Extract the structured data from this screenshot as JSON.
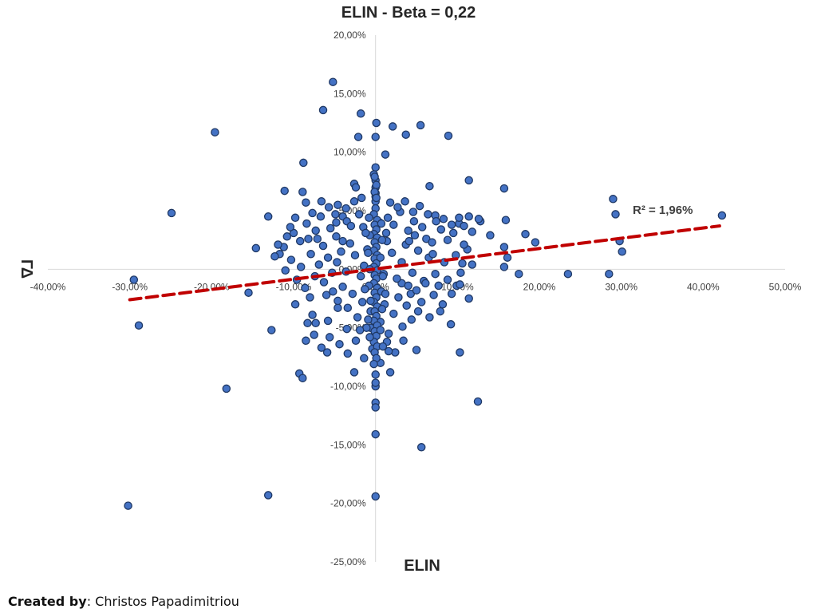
{
  "credit": {
    "label": "Created by",
    "separator": ": ",
    "author": "Christos Papadimitriou"
  },
  "chart_data": {
    "type": "scatter",
    "title": "ELIN - Beta = 0,22",
    "xlabel": "ELIN",
    "ylabel": "ΓΔ",
    "xlim": [
      -0.4,
      0.5
    ],
    "ylim": [
      -0.25,
      0.2
    ],
    "x_ticks": [
      -0.4,
      -0.3,
      -0.2,
      -0.1,
      0.0,
      0.1,
      0.2,
      0.3,
      0.4,
      0.5
    ],
    "x_tick_labels": [
      "-40,00%",
      "-30,00%",
      "-20,00%",
      "-10,00%",
      "0,00%",
      "10,00%",
      "20,00%",
      "30,00%",
      "40,00%",
      "50,00%"
    ],
    "y_ticks": [
      -0.25,
      -0.2,
      -0.15,
      -0.1,
      -0.05,
      0.0,
      0.05,
      0.1,
      0.15,
      0.2
    ],
    "y_tick_labels": [
      "-25,00%",
      "-20,00%",
      "-15,00%",
      "-10,00%",
      "-5,00%",
      "0,00%",
      "5,00%",
      "10,00%",
      "15,00%",
      "20,00%"
    ],
    "grid": false,
    "colors": {
      "marker_fill": "#4472c4",
      "marker_stroke": "#1f3864",
      "trendline": "#c00000",
      "axis": "#d9d9d9"
    },
    "trendline": {
      "type": "linear",
      "x_range": [
        -0.3,
        0.42
      ],
      "y_range": [
        -0.026,
        0.037
      ],
      "label": "R² = 1,96%"
    },
    "series": [
      {
        "points": [
          [
            -0.052,
            0.16
          ],
          [
            -0.064,
            0.136
          ],
          [
            -0.018,
            0.133
          ],
          [
            0.001,
            0.125
          ],
          [
            0.021,
            0.122
          ],
          [
            0.055,
            0.123
          ],
          [
            -0.196,
            0.117
          ],
          [
            -0.021,
            0.113
          ],
          [
            0.0,
            0.113
          ],
          [
            0.037,
            0.115
          ],
          [
            0.089,
            0.114
          ],
          [
            0.012,
            0.098
          ],
          [
            -0.088,
            0.091
          ],
          [
            0.0,
            0.087
          ],
          [
            -0.002,
            0.081
          ],
          [
            0.114,
            0.076
          ],
          [
            0.0,
            0.076
          ],
          [
            -0.026,
            0.073
          ],
          [
            0.066,
            0.071
          ],
          [
            -0.111,
            0.067
          ],
          [
            -0.089,
            0.066
          ],
          [
            0.157,
            0.069
          ],
          [
            -0.024,
            0.07
          ],
          [
            0.0,
            0.065
          ],
          [
            0.29,
            0.06
          ],
          [
            -0.085,
            0.057
          ],
          [
            -0.066,
            0.058
          ],
          [
            0.0,
            0.058
          ],
          [
            -0.249,
            0.048
          ],
          [
            -0.131,
            0.045
          ],
          [
            0.293,
            0.047
          ],
          [
            0.423,
            0.046
          ],
          [
            -0.049,
            0.047
          ],
          [
            -0.04,
            0.045
          ],
          [
            0.073,
            0.046
          ],
          [
            0.114,
            0.045
          ],
          [
            0.159,
            0.042
          ],
          [
            0.102,
            0.039
          ],
          [
            -0.048,
            0.04
          ],
          [
            0.005,
            0.04
          ],
          [
            0.128,
            0.041
          ],
          [
            -0.1,
            0.031
          ],
          [
            0.183,
            0.03
          ],
          [
            0.14,
            0.029
          ],
          [
            -0.146,
            0.018
          ],
          [
            0.157,
            0.019
          ],
          [
            0.195,
            0.023
          ],
          [
            0.298,
            0.024
          ],
          [
            -0.117,
            0.013
          ],
          [
            0.157,
            0.002
          ],
          [
            0.161,
            0.01
          ],
          [
            0.301,
            0.015
          ],
          [
            -0.295,
            -0.009
          ],
          [
            0.175,
            -0.004
          ],
          [
            0.235,
            -0.004
          ],
          [
            0.285,
            -0.004
          ],
          [
            0.032,
            -0.012
          ],
          [
            0.04,
            -0.014
          ],
          [
            -0.155,
            -0.02
          ],
          [
            -0.289,
            -0.048
          ],
          [
            -0.098,
            -0.03
          ],
          [
            -0.046,
            -0.033
          ],
          [
            -0.006,
            -0.05
          ],
          [
            0.079,
            -0.036
          ],
          [
            0.114,
            -0.025
          ],
          [
            0.043,
            -0.021
          ],
          [
            -0.127,
            -0.052
          ],
          [
            -0.083,
            -0.046
          ],
          [
            -0.077,
            -0.039
          ],
          [
            -0.073,
            -0.046
          ],
          [
            0.092,
            -0.047
          ],
          [
            0.103,
            -0.071
          ],
          [
            0.05,
            -0.069
          ],
          [
            -0.059,
            -0.071
          ],
          [
            -0.093,
            -0.089
          ],
          [
            -0.089,
            -0.093
          ],
          [
            -0.026,
            -0.088
          ],
          [
            0.018,
            -0.088
          ],
          [
            -0.182,
            -0.102
          ],
          [
            0.125,
            -0.113
          ],
          [
            -0.131,
            -0.193
          ],
          [
            -0.302,
            -0.202
          ],
          [
            0.0,
            -0.141
          ],
          [
            0.056,
            -0.152
          ],
          [
            0.0,
            -0.194
          ],
          [
            0.0,
            -0.114
          ],
          [
            0.0,
            -0.118
          ],
          [
            0.0,
            -0.1
          ],
          [
            0.0,
            -0.097
          ],
          [
            0.0,
            -0.09
          ],
          [
            -0.073,
            0.033
          ],
          [
            -0.071,
            0.026
          ],
          [
            -0.082,
            0.026
          ],
          [
            -0.092,
            0.024
          ],
          [
            -0.064,
            0.02
          ],
          [
            -0.055,
            0.035
          ],
          [
            -0.035,
            0.041
          ],
          [
            -0.03,
            0.037
          ],
          [
            -0.02,
            0.047
          ],
          [
            -0.015,
            0.036
          ],
          [
            0.015,
            0.044
          ],
          [
            0.022,
            0.038
          ],
          [
            0.03,
            0.049
          ],
          [
            0.04,
            0.033
          ],
          [
            0.048,
            0.029
          ],
          [
            0.057,
            0.036
          ],
          [
            0.062,
            0.026
          ],
          [
            0.069,
            0.023
          ],
          [
            0.08,
            0.034
          ],
          [
            0.088,
            0.025
          ],
          [
            0.095,
            0.031
          ],
          [
            0.098,
            0.012
          ],
          [
            0.106,
            0.005
          ],
          [
            0.112,
            0.017
          ],
          [
            0.084,
            0.006
          ],
          [
            0.073,
            -0.004
          ],
          [
            0.065,
            0.01
          ],
          [
            0.059,
            -0.01
          ],
          [
            0.052,
            0.016
          ],
          [
            0.045,
            -0.003
          ],
          [
            0.037,
            0.021
          ],
          [
            0.032,
            0.006
          ],
          [
            0.026,
            -0.008
          ],
          [
            0.02,
            0.014
          ],
          [
            0.014,
            0.024
          ],
          [
            0.01,
            -0.004
          ],
          [
            -0.01,
            0.017
          ],
          [
            -0.014,
            0.003
          ],
          [
            -0.018,
            -0.006
          ],
          [
            -0.025,
            0.012
          ],
          [
            -0.031,
            0.022
          ],
          [
            -0.036,
            -0.002
          ],
          [
            -0.042,
            0.015
          ],
          [
            -0.047,
            0.006
          ],
          [
            -0.053,
            -0.003
          ],
          [
            -0.058,
            0.01
          ],
          [
            -0.063,
            -0.011
          ],
          [
            -0.069,
            0.004
          ],
          [
            -0.074,
            -0.006
          ],
          [
            -0.079,
            0.013
          ],
          [
            -0.086,
            -0.016
          ],
          [
            -0.091,
            0.002
          ],
          [
            -0.096,
            -0.009
          ],
          [
            -0.103,
            0.008
          ],
          [
            -0.11,
            -0.001
          ],
          [
            -0.06,
            -0.022
          ],
          [
            -0.052,
            -0.019
          ],
          [
            -0.046,
            -0.027
          ],
          [
            -0.04,
            -0.015
          ],
          [
            -0.034,
            -0.033
          ],
          [
            -0.028,
            -0.021
          ],
          [
            -0.022,
            -0.041
          ],
          [
            -0.016,
            -0.028
          ],
          [
            -0.011,
            -0.05
          ],
          [
            -0.006,
            -0.036
          ],
          [
            0.006,
            -0.045
          ],
          [
            0.011,
            -0.03
          ],
          [
            0.016,
            -0.055
          ],
          [
            0.022,
            -0.038
          ],
          [
            0.028,
            -0.024
          ],
          [
            0.033,
            -0.049
          ],
          [
            0.038,
            -0.031
          ],
          [
            0.044,
            -0.043
          ],
          [
            0.05,
            -0.018
          ],
          [
            0.056,
            -0.028
          ],
          [
            0.061,
            -0.012
          ],
          [
            0.066,
            -0.041
          ],
          [
            0.071,
            -0.022
          ],
          [
            0.077,
            -0.014
          ],
          [
            0.082,
            -0.03
          ],
          [
            0.088,
            -0.009
          ],
          [
            0.093,
            -0.021
          ],
          [
            0.099,
            -0.014
          ],
          [
            0.104,
            -0.003
          ],
          [
            -0.085,
            -0.061
          ],
          [
            -0.075,
            -0.056
          ],
          [
            -0.066,
            -0.067
          ],
          [
            -0.056,
            -0.058
          ],
          [
            -0.044,
            -0.064
          ],
          [
            -0.034,
            -0.072
          ],
          [
            -0.024,
            -0.061
          ],
          [
            -0.014,
            -0.076
          ],
          [
            -0.004,
            -0.068
          ],
          [
            0.006,
            -0.08
          ],
          [
            0.014,
            -0.062
          ],
          [
            0.024,
            -0.071
          ],
          [
            -0.108,
            0.028
          ],
          [
            -0.104,
            0.036
          ],
          [
            -0.112,
            0.019
          ],
          [
            -0.098,
            0.044
          ],
          [
            -0.084,
            0.039
          ],
          [
            -0.077,
            0.048
          ],
          [
            -0.067,
            0.045
          ],
          [
            -0.057,
            0.053
          ],
          [
            -0.046,
            0.055
          ],
          [
            -0.036,
            0.052
          ],
          [
            -0.026,
            0.058
          ],
          [
            -0.017,
            0.061
          ],
          [
            0.018,
            0.057
          ],
          [
            0.027,
            0.053
          ],
          [
            0.036,
            0.058
          ],
          [
            0.046,
            0.049
          ],
          [
            0.054,
            0.054
          ],
          [
            0.064,
            0.047
          ],
          [
            0.074,
            0.041
          ],
          [
            0.083,
            0.043
          ],
          [
            0.093,
            0.038
          ],
          [
            0.102,
            0.044
          ],
          [
            0.108,
            0.037
          ],
          [
            0.118,
            0.032
          ],
          [
            -0.0,
            0.052
          ],
          [
            -0.002,
            0.047
          ],
          [
            0.002,
            0.042
          ],
          [
            -0.001,
            0.038
          ],
          [
            0.001,
            0.034
          ],
          [
            -0.002,
            0.03
          ],
          [
            0.002,
            0.027
          ],
          [
            -0.001,
            0.023
          ],
          [
            0.001,
            0.019
          ],
          [
            -0.002,
            0.016
          ],
          [
            0.002,
            0.012
          ],
          [
            -0.001,
            0.009
          ],
          [
            0.001,
            0.005
          ],
          [
            -0.002,
            0.002
          ],
          [
            0.002,
            -0.001
          ],
          [
            -0.001,
            -0.005
          ],
          [
            0.001,
            -0.008
          ],
          [
            -0.002,
            -0.012
          ],
          [
            0.002,
            -0.016
          ],
          [
            -0.001,
            -0.02
          ],
          [
            0.001,
            -0.024
          ],
          [
            -0.002,
            -0.028
          ],
          [
            0.002,
            -0.032
          ],
          [
            -0.001,
            -0.036
          ],
          [
            0.001,
            -0.04
          ],
          [
            -0.002,
            -0.044
          ],
          [
            0.002,
            -0.048
          ],
          [
            -0.001,
            -0.053
          ],
          [
            0.001,
            -0.057
          ],
          [
            -0.002,
            -0.062
          ],
          [
            0.002,
            -0.066
          ],
          [
            -0.001,
            -0.071
          ],
          [
            0.001,
            -0.076
          ],
          [
            -0.002,
            -0.081
          ],
          [
            -0.008,
            0.044
          ],
          [
            -0.007,
            0.029
          ],
          [
            -0.009,
            0.014
          ],
          [
            -0.007,
            0.0
          ],
          [
            -0.008,
            -0.014
          ],
          [
            -0.006,
            -0.027
          ],
          [
            -0.009,
            -0.043
          ],
          [
            -0.007,
            -0.058
          ],
          [
            0.007,
            0.039
          ],
          [
            0.008,
            0.025
          ],
          [
            0.006,
            0.01
          ],
          [
            0.009,
            -0.006
          ],
          [
            0.007,
            -0.019
          ],
          [
            0.008,
            -0.034
          ],
          [
            0.006,
            -0.052
          ],
          [
            0.009,
            -0.066
          ],
          [
            -0.012,
            0.031
          ],
          [
            0.013,
            0.031
          ],
          [
            -0.013,
            -0.017
          ],
          [
            0.012,
            -0.021
          ],
          [
            0.0,
            0.07
          ],
          [
            0.0,
            0.062
          ],
          [
            -0.001,
            0.079
          ],
          [
            0.001,
            0.072
          ],
          [
            -0.001,
            0.066
          ],
          [
            0.001,
            0.061
          ],
          [
            0.041,
            0.024
          ],
          [
            0.047,
            0.041
          ],
          [
            -0.04,
            0.024
          ],
          [
            -0.048,
            0.028
          ],
          [
            0.07,
            0.013
          ],
          [
            -0.08,
            -0.024
          ],
          [
            0.108,
            0.021
          ],
          [
            0.118,
            0.004
          ],
          [
            0.103,
            -0.013
          ],
          [
            -0.119,
            0.021
          ],
          [
            -0.123,
            0.011
          ],
          [
            0.126,
            0.043
          ],
          [
            0.052,
            -0.036
          ],
          [
            -0.058,
            -0.044
          ],
          [
            0.034,
            -0.061
          ],
          [
            -0.035,
            -0.051
          ],
          [
            0.016,
            -0.07
          ],
          [
            -0.019,
            -0.052
          ]
        ]
      }
    ]
  }
}
